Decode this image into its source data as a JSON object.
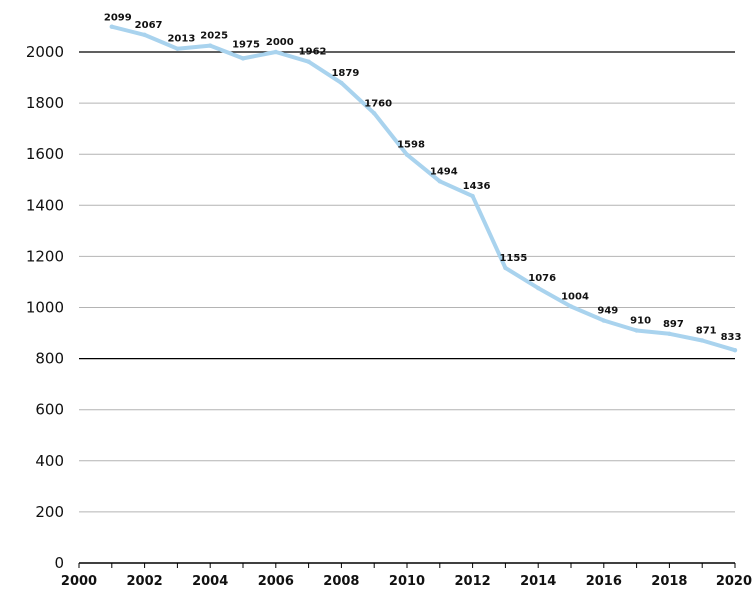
{
  "chart_data": {
    "type": "line",
    "title": "",
    "xlabel": "",
    "ylabel": "",
    "xlim": [
      2000,
      2020
    ],
    "ylim": [
      0,
      2000
    ],
    "xticks": [
      "2000",
      "2002",
      "2004",
      "2006",
      "2008",
      "2010",
      "2012",
      "2014",
      "2016",
      "2018",
      "2020"
    ],
    "yticks": [
      "0",
      "200",
      "400",
      "600",
      "800",
      "1000",
      "1200",
      "1400",
      "1600",
      "1800",
      "2000"
    ],
    "dark_gridlines": [
      800,
      2000
    ],
    "grid": true,
    "legend": "none",
    "line_color": "#a9d3ee",
    "x": [
      2001,
      2002,
      2003,
      2004,
      2005,
      2006,
      2007,
      2008,
      2009,
      2010,
      2011,
      2012,
      2013,
      2014,
      2015,
      2016,
      2017,
      2018,
      2019,
      2020
    ],
    "values": [
      2099,
      2067,
      2013,
      2025,
      1975,
      2000,
      1962,
      1879,
      1760,
      1598,
      1494,
      1436,
      1155,
      1076,
      1004,
      949,
      910,
      897,
      871,
      833
    ],
    "labels": [
      "2099",
      "2067",
      "2013",
      "2025",
      "1975",
      "2000",
      "1962",
      "1879",
      "1760",
      "1598",
      "1494",
      "1436",
      "1155",
      "1076",
      "1004",
      "949",
      "910",
      "897",
      "871",
      "833"
    ]
  }
}
